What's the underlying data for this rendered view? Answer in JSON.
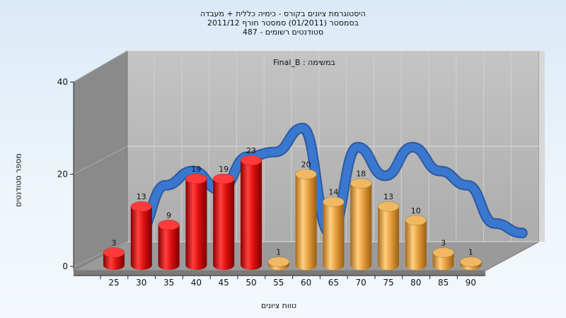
{
  "title_lines": [
    "היסטוגרמת ציונים בקורס - כימיה כללית + מעבדה",
    "בסמסטר  (01/2011)  סמסטר חורף 2011/12",
    "487 - סטודנטים רשומים"
  ],
  "colors": {
    "red_bar": "#e01010",
    "orange_bar": "#e8a040",
    "curve": "#3a78d0",
    "back_wall": "#b6b6b6",
    "side_wall": "#8a8a8a",
    "floor": "#9a9a9a"
  },
  "chart_data": {
    "type": "bar",
    "title": "היסטוגרמת ציונים בקורס - כימיה כללית + מעבדה",
    "annotation": "Final_B : במשימה",
    "xlabel": "טווח ציונים",
    "ylabel": "מספר סטודנטים",
    "ylim": [
      0,
      40
    ],
    "y_ticks": [
      0,
      20,
      40
    ],
    "x_ticks": [
      "25",
      "30",
      "35",
      "40",
      "45",
      "50",
      "55",
      "60",
      "65",
      "70",
      "75",
      "80",
      "85",
      "90"
    ],
    "grid": true,
    "bars": [
      {
        "x": 25,
        "value": 3,
        "color": "red"
      },
      {
        "x": 30,
        "value": 13,
        "color": "red"
      },
      {
        "x": 35,
        "value": 9,
        "color": "red"
      },
      {
        "x": 40,
        "value": 19,
        "color": "red"
      },
      {
        "x": 45,
        "value": 19,
        "color": "red"
      },
      {
        "x": 50,
        "value": 23,
        "color": "red"
      },
      {
        "x": 55,
        "value": 1,
        "color": "orange"
      },
      {
        "x": 60,
        "value": 20,
        "color": "orange"
      },
      {
        "x": 65,
        "value": 14,
        "color": "orange"
      },
      {
        "x": 70,
        "value": 18,
        "color": "orange"
      },
      {
        "x": 75,
        "value": 13,
        "color": "orange"
      },
      {
        "x": 80,
        "value": 10,
        "color": "orange"
      },
      {
        "x": 85,
        "value": 3,
        "color": "orange"
      },
      {
        "x": 90,
        "value": 1,
        "color": "orange"
      }
    ],
    "curve": {
      "x": [
        25,
        30,
        35,
        40,
        45,
        50,
        55,
        60,
        65,
        70,
        75,
        80,
        85,
        90,
        95
      ],
      "y": [
        3,
        13,
        16,
        12,
        19,
        20,
        25,
        3,
        21,
        15,
        21,
        16,
        13,
        5,
        3
      ]
    }
  }
}
